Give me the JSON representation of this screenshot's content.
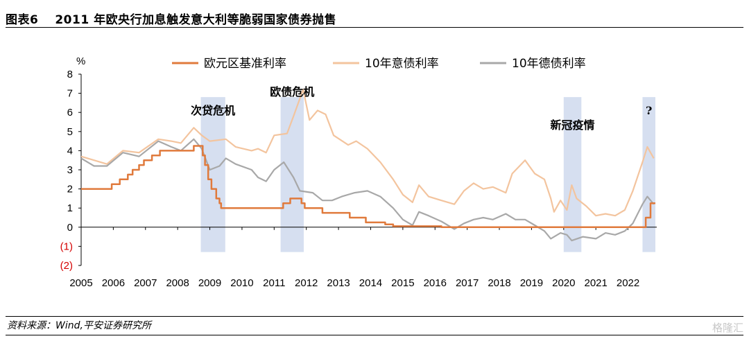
{
  "header": {
    "figure_label": "图表6",
    "title": "2011 年欧央行加息触发意大利等脆弱国家债券抛售"
  },
  "footer": {
    "source": "资料来源：Wind,平安证券研究所",
    "watermark": "格隆汇"
  },
  "chart_data": {
    "type": "line",
    "title": "2011 年欧央行加息触发意大利等脆弱国家债券抛售",
    "unit_label": "%",
    "xlim": [
      2005,
      2022.85
    ],
    "ylim": [
      -2,
      8
    ],
    "y_ticks": [
      {
        "value": 8,
        "label": "8"
      },
      {
        "value": 7,
        "label": "7"
      },
      {
        "value": 6,
        "label": "6"
      },
      {
        "value": 5,
        "label": "5"
      },
      {
        "value": 4,
        "label": "4"
      },
      {
        "value": 3,
        "label": "3"
      },
      {
        "value": 2,
        "label": "2"
      },
      {
        "value": 1,
        "label": "1"
      },
      {
        "value": 0,
        "label": "0"
      },
      {
        "value": -1,
        "label": "(1)"
      },
      {
        "value": -2,
        "label": "(2)"
      }
    ],
    "x_ticks": [
      "2005",
      "2006",
      "2007",
      "2008",
      "2009",
      "2010",
      "2011",
      "2012",
      "2013",
      "2014",
      "2015",
      "2016",
      "2017",
      "2018",
      "2019",
      "2020",
      "2021",
      "2022"
    ],
    "legend_position": "top",
    "grid": false,
    "colors": {
      "ecb": "#e07a3c",
      "italy": "#f3c49e",
      "germany": "#a8a8a8",
      "band": "#d6dff0",
      "negative_tick": "#d40000"
    },
    "series": [
      {
        "name": "欧元区基准利率",
        "color": "#e07a3c",
        "step": true,
        "points": [
          [
            2005,
            2.0
          ],
          [
            2005.95,
            2.25
          ],
          [
            2006.2,
            2.5
          ],
          [
            2006.45,
            2.75
          ],
          [
            2006.6,
            3.0
          ],
          [
            2006.8,
            3.25
          ],
          [
            2006.95,
            3.5
          ],
          [
            2007.2,
            3.75
          ],
          [
            2007.45,
            4.0
          ],
          [
            2008.5,
            4.25
          ],
          [
            2008.78,
            3.75
          ],
          [
            2008.85,
            3.25
          ],
          [
            2008.95,
            2.5
          ],
          [
            2009.05,
            2.0
          ],
          [
            2009.2,
            1.5
          ],
          [
            2009.3,
            1.25
          ],
          [
            2009.35,
            1.0
          ],
          [
            2011.28,
            1.25
          ],
          [
            2011.5,
            1.5
          ],
          [
            2011.85,
            1.25
          ],
          [
            2011.95,
            1.0
          ],
          [
            2012.5,
            0.75
          ],
          [
            2013.35,
            0.5
          ],
          [
            2013.85,
            0.25
          ],
          [
            2014.45,
            0.15
          ],
          [
            2014.7,
            0.05
          ],
          [
            2016.2,
            0.0
          ],
          [
            2022.55,
            0.5
          ],
          [
            2022.7,
            1.25
          ],
          [
            2022.85,
            1.25
          ]
        ]
      },
      {
        "name": "10年意债利率",
        "color": "#f3c49e",
        "step": false,
        "points": [
          [
            2005,
            3.7
          ],
          [
            2005.4,
            3.5
          ],
          [
            2005.8,
            3.3
          ],
          [
            2006.3,
            4.0
          ],
          [
            2006.8,
            3.9
          ],
          [
            2007.4,
            4.6
          ],
          [
            2007.8,
            4.5
          ],
          [
            2008.1,
            4.4
          ],
          [
            2008.5,
            5.2
          ],
          [
            2008.75,
            4.8
          ],
          [
            2009.0,
            4.5
          ],
          [
            2009.5,
            4.6
          ],
          [
            2009.8,
            4.2
          ],
          [
            2010.3,
            4.0
          ],
          [
            2010.5,
            4.1
          ],
          [
            2010.75,
            3.9
          ],
          [
            2011.0,
            4.8
          ],
          [
            2011.4,
            4.9
          ],
          [
            2011.6,
            5.8
          ],
          [
            2011.9,
            7.2
          ],
          [
            2012.1,
            5.6
          ],
          [
            2012.35,
            6.1
          ],
          [
            2012.6,
            5.9
          ],
          [
            2012.85,
            4.8
          ],
          [
            2013.3,
            4.3
          ],
          [
            2013.55,
            4.5
          ],
          [
            2013.9,
            4.1
          ],
          [
            2014.3,
            3.4
          ],
          [
            2014.7,
            2.5
          ],
          [
            2015.0,
            1.7
          ],
          [
            2015.3,
            1.3
          ],
          [
            2015.5,
            2.2
          ],
          [
            2015.8,
            1.6
          ],
          [
            2016.2,
            1.4
          ],
          [
            2016.6,
            1.2
          ],
          [
            2016.9,
            1.9
          ],
          [
            2017.2,
            2.3
          ],
          [
            2017.5,
            2.0
          ],
          [
            2017.8,
            2.1
          ],
          [
            2018.2,
            1.8
          ],
          [
            2018.4,
            2.8
          ],
          [
            2018.8,
            3.5
          ],
          [
            2019.1,
            2.8
          ],
          [
            2019.4,
            2.5
          ],
          [
            2019.6,
            1.5
          ],
          [
            2019.7,
            0.8
          ],
          [
            2019.9,
            1.4
          ],
          [
            2020.1,
            0.9
          ],
          [
            2020.25,
            2.2
          ],
          [
            2020.4,
            1.5
          ],
          [
            2020.7,
            1.1
          ],
          [
            2021.0,
            0.6
          ],
          [
            2021.3,
            0.7
          ],
          [
            2021.6,
            0.6
          ],
          [
            2021.9,
            0.9
          ],
          [
            2022.15,
            1.9
          ],
          [
            2022.45,
            3.4
          ],
          [
            2022.6,
            4.2
          ],
          [
            2022.8,
            3.6
          ]
        ]
      },
      {
        "name": "10年德债利率",
        "color": "#a8a8a8",
        "step": false,
        "points": [
          [
            2005,
            3.6
          ],
          [
            2005.4,
            3.2
          ],
          [
            2005.8,
            3.2
          ],
          [
            2006.3,
            3.9
          ],
          [
            2006.8,
            3.7
          ],
          [
            2007.4,
            4.5
          ],
          [
            2007.8,
            4.2
          ],
          [
            2008.1,
            4.0
          ],
          [
            2008.5,
            4.6
          ],
          [
            2008.75,
            4.1
          ],
          [
            2009.0,
            3.0
          ],
          [
            2009.3,
            3.2
          ],
          [
            2009.5,
            3.6
          ],
          [
            2009.8,
            3.3
          ],
          [
            2010.3,
            3.0
          ],
          [
            2010.5,
            2.6
          ],
          [
            2010.75,
            2.4
          ],
          [
            2011.0,
            3.0
          ],
          [
            2011.3,
            3.4
          ],
          [
            2011.6,
            2.6
          ],
          [
            2011.8,
            1.9
          ],
          [
            2012.2,
            1.8
          ],
          [
            2012.5,
            1.4
          ],
          [
            2012.8,
            1.4
          ],
          [
            2013.1,
            1.6
          ],
          [
            2013.5,
            1.8
          ],
          [
            2013.9,
            1.9
          ],
          [
            2014.3,
            1.6
          ],
          [
            2014.7,
            1.0
          ],
          [
            2015.0,
            0.4
          ],
          [
            2015.3,
            0.1
          ],
          [
            2015.5,
            0.8
          ],
          [
            2015.8,
            0.6
          ],
          [
            2016.2,
            0.3
          ],
          [
            2016.6,
            -0.1
          ],
          [
            2016.9,
            0.2
          ],
          [
            2017.2,
            0.4
          ],
          [
            2017.5,
            0.5
          ],
          [
            2017.8,
            0.4
          ],
          [
            2018.2,
            0.7
          ],
          [
            2018.5,
            0.4
          ],
          [
            2018.8,
            0.4
          ],
          [
            2019.1,
            0.1
          ],
          [
            2019.4,
            -0.2
          ],
          [
            2019.6,
            -0.6
          ],
          [
            2019.9,
            -0.3
          ],
          [
            2020.1,
            -0.4
          ],
          [
            2020.25,
            -0.7
          ],
          [
            2020.6,
            -0.5
          ],
          [
            2021.0,
            -0.6
          ],
          [
            2021.3,
            -0.3
          ],
          [
            2021.6,
            -0.4
          ],
          [
            2021.9,
            -0.2
          ],
          [
            2022.15,
            0.2
          ],
          [
            2022.45,
            1.2
          ],
          [
            2022.6,
            1.6
          ],
          [
            2022.8,
            1.2
          ]
        ]
      }
    ],
    "annotations": [
      {
        "text": "次贷危机",
        "band": [
          2008.72,
          2009.48
        ]
      },
      {
        "text": "欧债危机",
        "band": [
          2011.2,
          2011.92
        ]
      },
      {
        "text": "新冠疫情",
        "band": [
          2020.0,
          2020.55
        ]
      },
      {
        "text": "?",
        "band": [
          2022.45,
          2022.85
        ]
      }
    ],
    "bands_ylim": [
      -1.3,
      6.8
    ]
  }
}
